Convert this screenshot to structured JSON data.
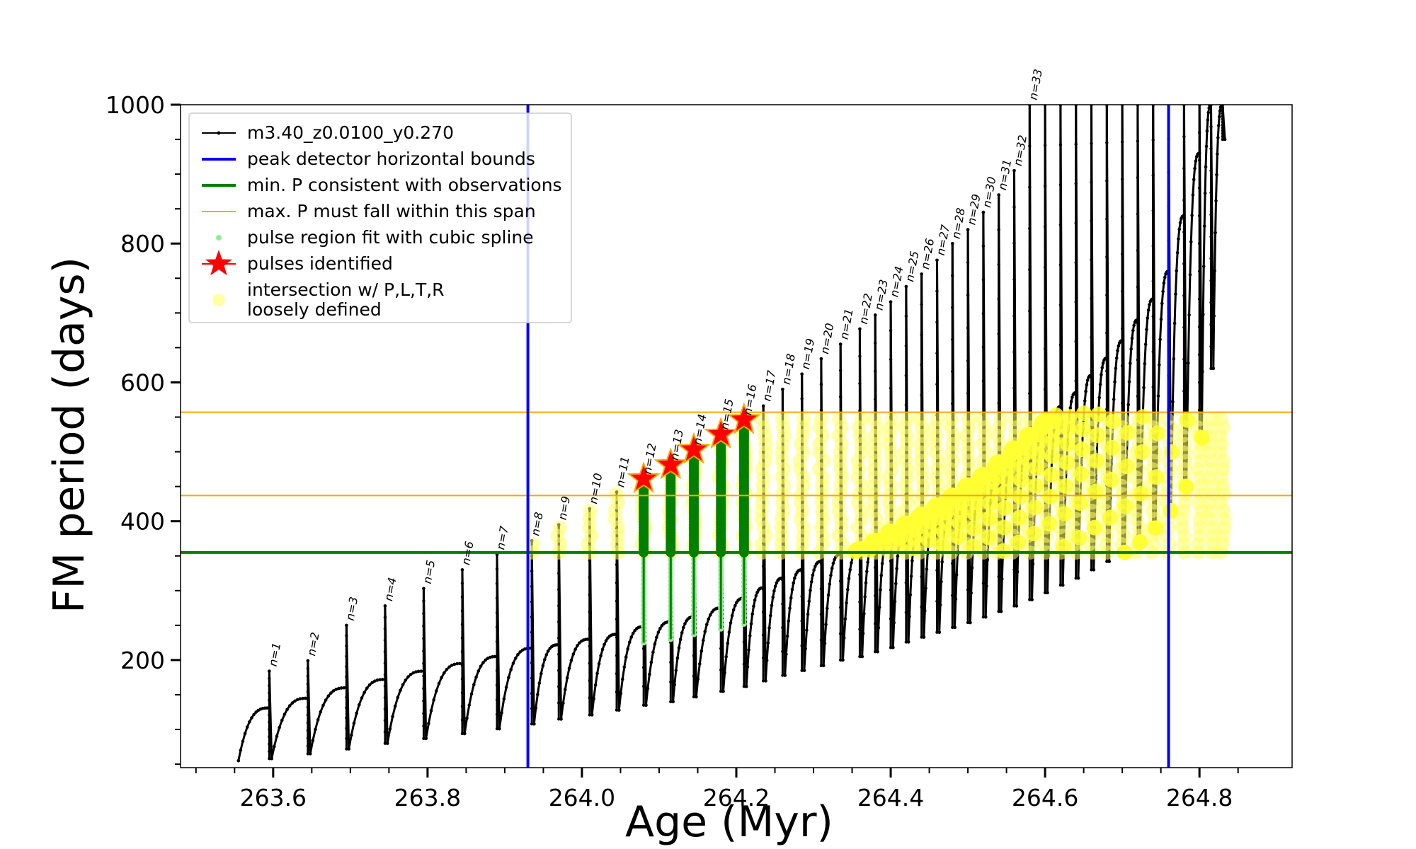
{
  "chart_data": {
    "type": "line",
    "title": "",
    "xlabel": "Age (Myr)",
    "ylabel": "FM period (days)",
    "xlim": [
      263.48,
      264.92
    ],
    "ylim": [
      45,
      1000
    ],
    "xticks": [
      263.6,
      263.8,
      264.0,
      264.2,
      264.4,
      264.6,
      264.8
    ],
    "xtick_labels": [
      "263.6",
      "263.8",
      "264.0",
      "264.2",
      "264.4",
      "264.6",
      "264.8"
    ],
    "yticks": [
      200,
      400,
      600,
      800,
      1000
    ],
    "ytick_labels": [
      "200",
      "400",
      "600",
      "800",
      "1000"
    ],
    "grid": false,
    "legend_position": "top-left",
    "legend": [
      {
        "label": "m3.40_z0.0100_y0.270",
        "kind": "line-dots",
        "color": "#000000"
      },
      {
        "label": "peak detector horizontal bounds",
        "kind": "line",
        "color": "#0000ff"
      },
      {
        "label": "min. P consistent with observations",
        "kind": "line",
        "color": "#008000"
      },
      {
        "label": "max. P must fall within this span",
        "kind": "thin-line",
        "color": "#ffa500"
      },
      {
        "label": "pulse region fit with cubic spline",
        "kind": "dot",
        "color": "#90ee90"
      },
      {
        "label": "pulses identified",
        "kind": "star",
        "color": "#ff0000"
      },
      {
        "label": [
          "intersection w/ P,L,T,R",
          "loosely defined"
        ],
        "kind": "circle",
        "color": "#ffff80"
      }
    ],
    "vertical_lines": [
      263.93,
      264.76
    ],
    "min_period": 355,
    "max_period_span": [
      437,
      557
    ],
    "pulses": [
      {
        "n": 1,
        "start": 263.595,
        "top": 184,
        "dip": 58,
        "pre": 131
      },
      {
        "n": 2,
        "start": 263.645,
        "top": 199,
        "dip": 65,
        "pre": 145
      },
      {
        "n": 3,
        "start": 263.695,
        "top": 250,
        "dip": 72,
        "pre": 160
      },
      {
        "n": 4,
        "start": 263.745,
        "top": 278,
        "dip": 80,
        "pre": 172
      },
      {
        "n": 5,
        "start": 263.795,
        "top": 303,
        "dip": 87,
        "pre": 184
      },
      {
        "n": 6,
        "start": 263.845,
        "top": 330,
        "dip": 94,
        "pre": 195
      },
      {
        "n": 7,
        "start": 263.89,
        "top": 352,
        "dip": 101,
        "pre": 205
      },
      {
        "n": 8,
        "start": 263.935,
        "top": 372,
        "dip": 108,
        "pre": 217
      },
      {
        "n": 9,
        "start": 263.97,
        "top": 395,
        "dip": 115,
        "pre": 222
      },
      {
        "n": 10,
        "start": 264.01,
        "top": 418,
        "dip": 121,
        "pre": 230
      },
      {
        "n": 11,
        "start": 264.045,
        "top": 442,
        "dip": 128,
        "pre": 237
      },
      {
        "n": 12,
        "start": 264.08,
        "top": 461,
        "dip": 135,
        "pre": 248
      },
      {
        "n": 13,
        "start": 264.115,
        "top": 481,
        "dip": 140,
        "pre": 255
      },
      {
        "n": 14,
        "start": 264.145,
        "top": 503,
        "dip": 147,
        "pre": 262
      },
      {
        "n": 15,
        "start": 264.18,
        "top": 525,
        "dip": 155,
        "pre": 275
      },
      {
        "n": 16,
        "start": 264.21,
        "top": 546,
        "dip": 162,
        "pre": 289
      },
      {
        "n": 17,
        "start": 264.235,
        "top": 566,
        "dip": 170,
        "pre": 304
      },
      {
        "n": 18,
        "start": 264.26,
        "top": 590,
        "dip": 178,
        "pre": 318
      },
      {
        "n": 19,
        "start": 264.285,
        "top": 612,
        "dip": 185,
        "pre": 330
      },
      {
        "n": 20,
        "start": 264.31,
        "top": 634,
        "dip": 192,
        "pre": 342
      },
      {
        "n": 21,
        "start": 264.335,
        "top": 655,
        "dip": 200,
        "pre": 352
      },
      {
        "n": 22,
        "start": 264.36,
        "top": 677,
        "dip": 205,
        "pre": 360
      },
      {
        "n": 23,
        "start": 264.38,
        "top": 697,
        "dip": 212,
        "pre": 372
      },
      {
        "n": 24,
        "start": 264.4,
        "top": 716,
        "dip": 218,
        "pre": 385
      },
      {
        "n": 25,
        "start": 264.42,
        "top": 738,
        "dip": 226,
        "pre": 397
      },
      {
        "n": 26,
        "start": 264.44,
        "top": 756,
        "dip": 233,
        "pre": 410
      },
      {
        "n": 27,
        "start": 264.46,
        "top": 776,
        "dip": 240,
        "pre": 423
      },
      {
        "n": 28,
        "start": 264.48,
        "top": 800,
        "dip": 247,
        "pre": 437
      },
      {
        "n": 29,
        "start": 264.5,
        "top": 820,
        "dip": 254,
        "pre": 452
      },
      {
        "n": 30,
        "start": 264.52,
        "top": 845,
        "dip": 262,
        "pre": 467
      },
      {
        "n": 31,
        "start": 264.54,
        "top": 870,
        "dip": 270,
        "pre": 485
      },
      {
        "n": 32,
        "start": 264.56,
        "top": 905,
        "dip": 278,
        "pre": 505
      },
      {
        "n": 33,
        "start": 264.58,
        "top": 1000,
        "dip": 287,
        "pre": 525
      }
    ],
    "extra_pulses": [
      {
        "start": 264.6,
        "top": 1000,
        "dip": 297,
        "pre": 545
      },
      {
        "start": 264.62,
        "top": 1000,
        "dip": 308,
        "pre": 565
      },
      {
        "start": 264.64,
        "top": 1000,
        "dip": 318,
        "pre": 585
      },
      {
        "start": 264.66,
        "top": 1000,
        "dip": 330,
        "pre": 610
      },
      {
        "start": 264.68,
        "top": 1000,
        "dip": 342,
        "pre": 635
      },
      {
        "start": 264.7,
        "top": 1000,
        "dip": 355,
        "pre": 660
      },
      {
        "start": 264.72,
        "top": 1000,
        "dip": 370,
        "pre": 690
      },
      {
        "start": 264.74,
        "top": 1000,
        "dip": 390,
        "pre": 720
      },
      {
        "start": 264.76,
        "top": 1000,
        "dip": 415,
        "pre": 760
      },
      {
        "start": 264.78,
        "top": 1000,
        "dip": 450,
        "pre": 840
      },
      {
        "start": 264.8,
        "top": 1000,
        "dip": 520,
        "pre": 930
      },
      {
        "start": 264.815,
        "top": 1000,
        "dip": 620,
        "pre": 1000
      },
      {
        "start": 264.83,
        "top": 1000,
        "dip": 950,
        "pre": 1000
      }
    ],
    "initial_age": 263.555,
    "initial_period": 55,
    "identified_pulses": [
      {
        "n": 12,
        "x": 264.08,
        "y": 461
      },
      {
        "n": 13,
        "x": 264.115,
        "y": 481
      },
      {
        "n": 14,
        "x": 264.145,
        "y": 503
      },
      {
        "n": 15,
        "x": 264.18,
        "y": 525
      },
      {
        "n": 16,
        "x": 264.21,
        "y": 546
      }
    ],
    "yellow_band": {
      "lower": 355,
      "upper": 557
    }
  }
}
